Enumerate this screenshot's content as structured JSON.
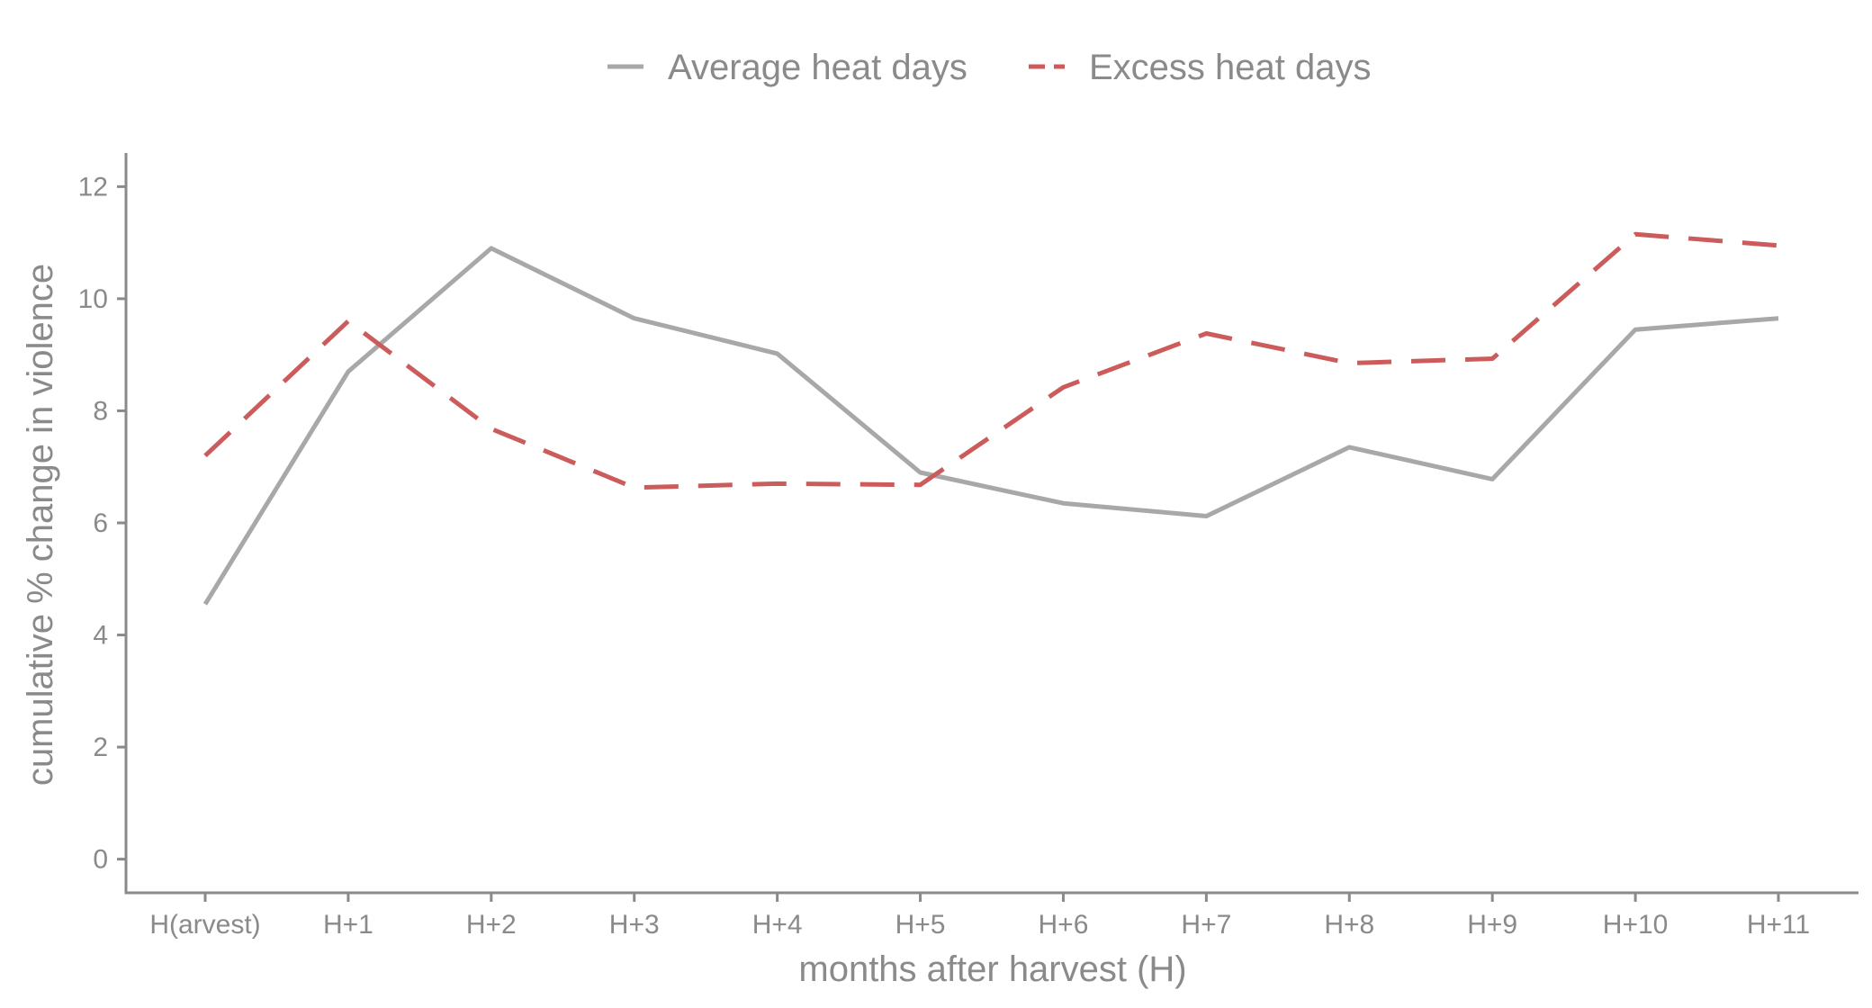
{
  "chart_data": {
    "type": "line",
    "title": "",
    "xlabel": "months after harvest (H)",
    "ylabel": "cumulative % change in violence",
    "categories": [
      "H(arvest)",
      "H+1",
      "H+2",
      "H+3",
      "H+4",
      "H+5",
      "H+6",
      "H+7",
      "H+8",
      "H+9",
      "H+10",
      "H+11"
    ],
    "ylim": [
      -0.6,
      12.6
    ],
    "yticks": [
      0,
      2,
      4,
      6,
      8,
      10,
      12
    ],
    "grid": false,
    "legend_position": "top-center",
    "series": [
      {
        "name": "Average heat days",
        "color": "#a8a8a8",
        "style": "solid",
        "values": [
          4.55,
          8.7,
          10.9,
          9.65,
          9.02,
          6.9,
          6.35,
          6.12,
          7.35,
          6.78,
          9.45,
          9.65
        ]
      },
      {
        "name": "Excess heat days",
        "color": "#cc5c5c",
        "style": "dashed",
        "values": [
          7.2,
          9.6,
          7.68,
          6.63,
          6.7,
          6.68,
          8.42,
          9.38,
          8.85,
          8.93,
          11.15,
          10.95
        ]
      }
    ]
  }
}
